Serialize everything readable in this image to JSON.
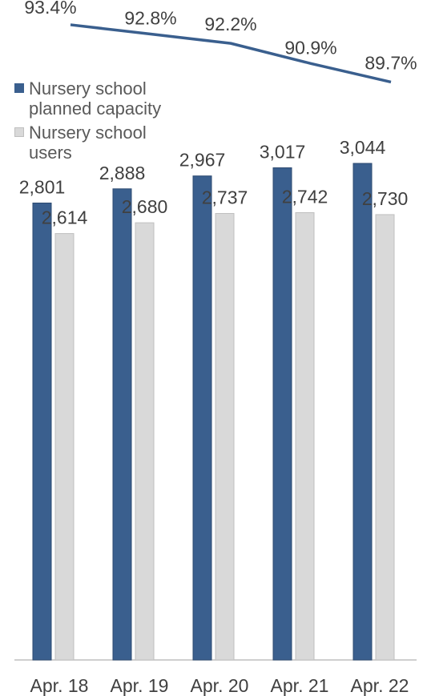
{
  "chart_data": {
    "type": "bar",
    "categories": [
      "Apr. 18",
      "Apr. 19",
      "Apr. 20",
      "Apr. 21",
      "Apr. 22"
    ],
    "series": [
      {
        "name": "Nursery school planned capacity",
        "values": [
          2801,
          2888,
          2967,
          3017,
          3044
        ],
        "value_labels": [
          "2,801",
          "2,888",
          "2,967",
          "3,017",
          "3,044"
        ],
        "color": "#3A5F8E"
      },
      {
        "name": "Nursery school users",
        "values": [
          2614,
          2680,
          2737,
          2742,
          2730
        ],
        "value_labels": [
          "2,614",
          "2,680",
          "2,737",
          "2,742",
          "2,730"
        ],
        "color": "#D9D9D9"
      }
    ],
    "line_series": {
      "type": "line",
      "values": [
        93.4,
        92.8,
        92.2,
        90.9,
        89.7
      ],
      "value_labels": [
        "93.4%",
        "92.8%",
        "92.2%",
        "90.9%",
        "89.7%"
      ],
      "color": "#3A5F8E"
    },
    "title": "",
    "xlabel": "",
    "ylabel": "",
    "ylim": [
      0,
      3300
    ],
    "line_ylim": [
      80,
      95
    ],
    "grid": false,
    "legend_position": "left",
    "axis_color": "#BFBFBF",
    "label_color": "#404040"
  }
}
